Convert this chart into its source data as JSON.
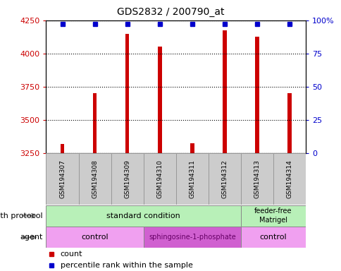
{
  "title": "GDS2832 / 200790_at",
  "samples": [
    "GSM194307",
    "GSM194308",
    "GSM194309",
    "GSM194310",
    "GSM194311",
    "GSM194312",
    "GSM194313",
    "GSM194314"
  ],
  "counts": [
    3320,
    3700,
    4150,
    4050,
    3325,
    4175,
    4125,
    3700
  ],
  "percentiles": [
    97,
    97,
    97,
    97,
    97,
    97,
    97,
    97
  ],
  "ylim_left": [
    3250,
    4250
  ],
  "ylim_right": [
    0,
    100
  ],
  "yticks_left": [
    3250,
    3500,
    3750,
    4000,
    4250
  ],
  "yticks_right": [
    0,
    25,
    50,
    75,
    100
  ],
  "ytick_labels_right": [
    "0",
    "25",
    "50",
    "75",
    "100%"
  ],
  "bar_color": "#cc0000",
  "dot_color": "#0000cc",
  "left_tick_color": "#cc0000",
  "right_tick_color": "#0000cc",
  "bar_width": 0.12,
  "gp_groups": [
    {
      "label": "standard condition",
      "start": 0,
      "end": 6,
      "color": "#b0f0b0"
    },
    {
      "label": "feeder-free\nMatrigel",
      "start": 6,
      "end": 8,
      "color": "#b0f0b0"
    }
  ],
  "agent_groups": [
    {
      "label": "control",
      "start": 0,
      "end": 3,
      "color": "#f0a0f0"
    },
    {
      "label": "sphingosine-1-phosphate",
      "start": 3,
      "end": 6,
      "color": "#d060d0"
    },
    {
      "label": "control",
      "start": 6,
      "end": 8,
      "color": "#f0a0f0"
    }
  ]
}
